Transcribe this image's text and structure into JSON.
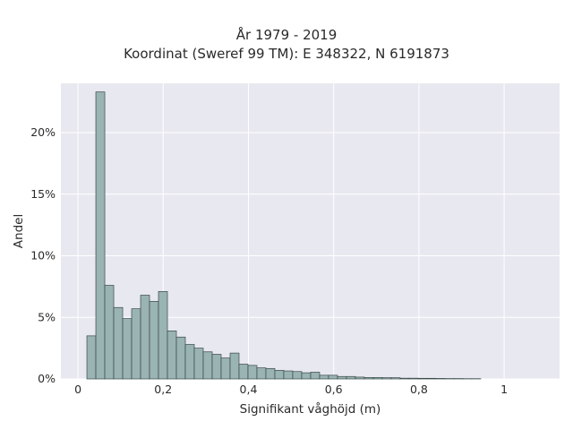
{
  "chart_data": {
    "type": "bar",
    "title": "År 1979 - 2019",
    "subtitle": "Koordinat (Sweref 99 TM): E 348322, N 6191873",
    "xlabel": "Signifikant våghöjd (m)",
    "ylabel": "Andel",
    "xlim": [
      -0.04,
      1.13
    ],
    "ylim": [
      0,
      24
    ],
    "grid": true,
    "bin_width": 0.021,
    "bin_start": 0.021,
    "values": [
      3.5,
      23.3,
      7.6,
      5.8,
      4.9,
      5.7,
      6.8,
      6.3,
      7.1,
      3.9,
      3.4,
      2.8,
      2.5,
      2.2,
      2.0,
      1.7,
      2.1,
      1.2,
      1.1,
      0.9,
      0.85,
      0.7,
      0.65,
      0.6,
      0.5,
      0.55,
      0.3,
      0.3,
      0.2,
      0.2,
      0.15,
      0.12,
      0.12,
      0.1,
      0.1,
      0.06,
      0.06,
      0.05,
      0.05,
      0.04,
      0.03,
      0.03,
      0.02,
      0.02
    ],
    "x_ticks": [
      {
        "value": 0,
        "label": "0"
      },
      {
        "value": 0.2,
        "label": "0,2"
      },
      {
        "value": 0.4,
        "label": "0,4"
      },
      {
        "value": 0.6,
        "label": "0,6"
      },
      {
        "value": 0.8,
        "label": "0,8"
      },
      {
        "value": 1,
        "label": "1"
      }
    ],
    "y_ticks": [
      {
        "value": 0,
        "label": "0%"
      },
      {
        "value": 5,
        "label": "5%"
      },
      {
        "value": 10,
        "label": "10%"
      },
      {
        "value": 15,
        "label": "15%"
      },
      {
        "value": 20,
        "label": "20%"
      }
    ],
    "colors": {
      "bar_fill": "#9ab3b3",
      "bar_stroke": "#3a4a4a",
      "plot_bg": "#e8e8f0",
      "grid": "#ffffff"
    }
  }
}
